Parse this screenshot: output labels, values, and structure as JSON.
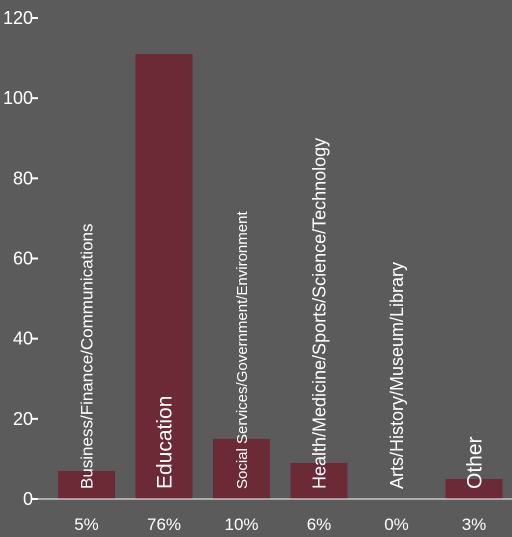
{
  "chart_data": {
    "type": "bar",
    "categories": [
      "Business/Finance/Communications",
      "Education",
      "Social Services/Government/Environment",
      "Health/Medicine/Sports/Science/Technology",
      "Arts/History/Museum/Library",
      "Other"
    ],
    "values": [
      7,
      111,
      15,
      9,
      0,
      5
    ],
    "percent_labels": [
      "5%",
      "76%",
      "10%",
      "6%",
      "0%",
      "3%"
    ],
    "yticks": [
      "0",
      "20",
      "40",
      "60",
      "80",
      "100",
      "120"
    ],
    "ylim": [
      0,
      120
    ],
    "title": "",
    "xlabel": "",
    "ylabel": "",
    "grid": false,
    "legend": "none",
    "colors": {
      "background": "#5b5b5b",
      "bar": "#6b2a36",
      "text": "#ffffff",
      "axis": "#ffffff"
    }
  }
}
